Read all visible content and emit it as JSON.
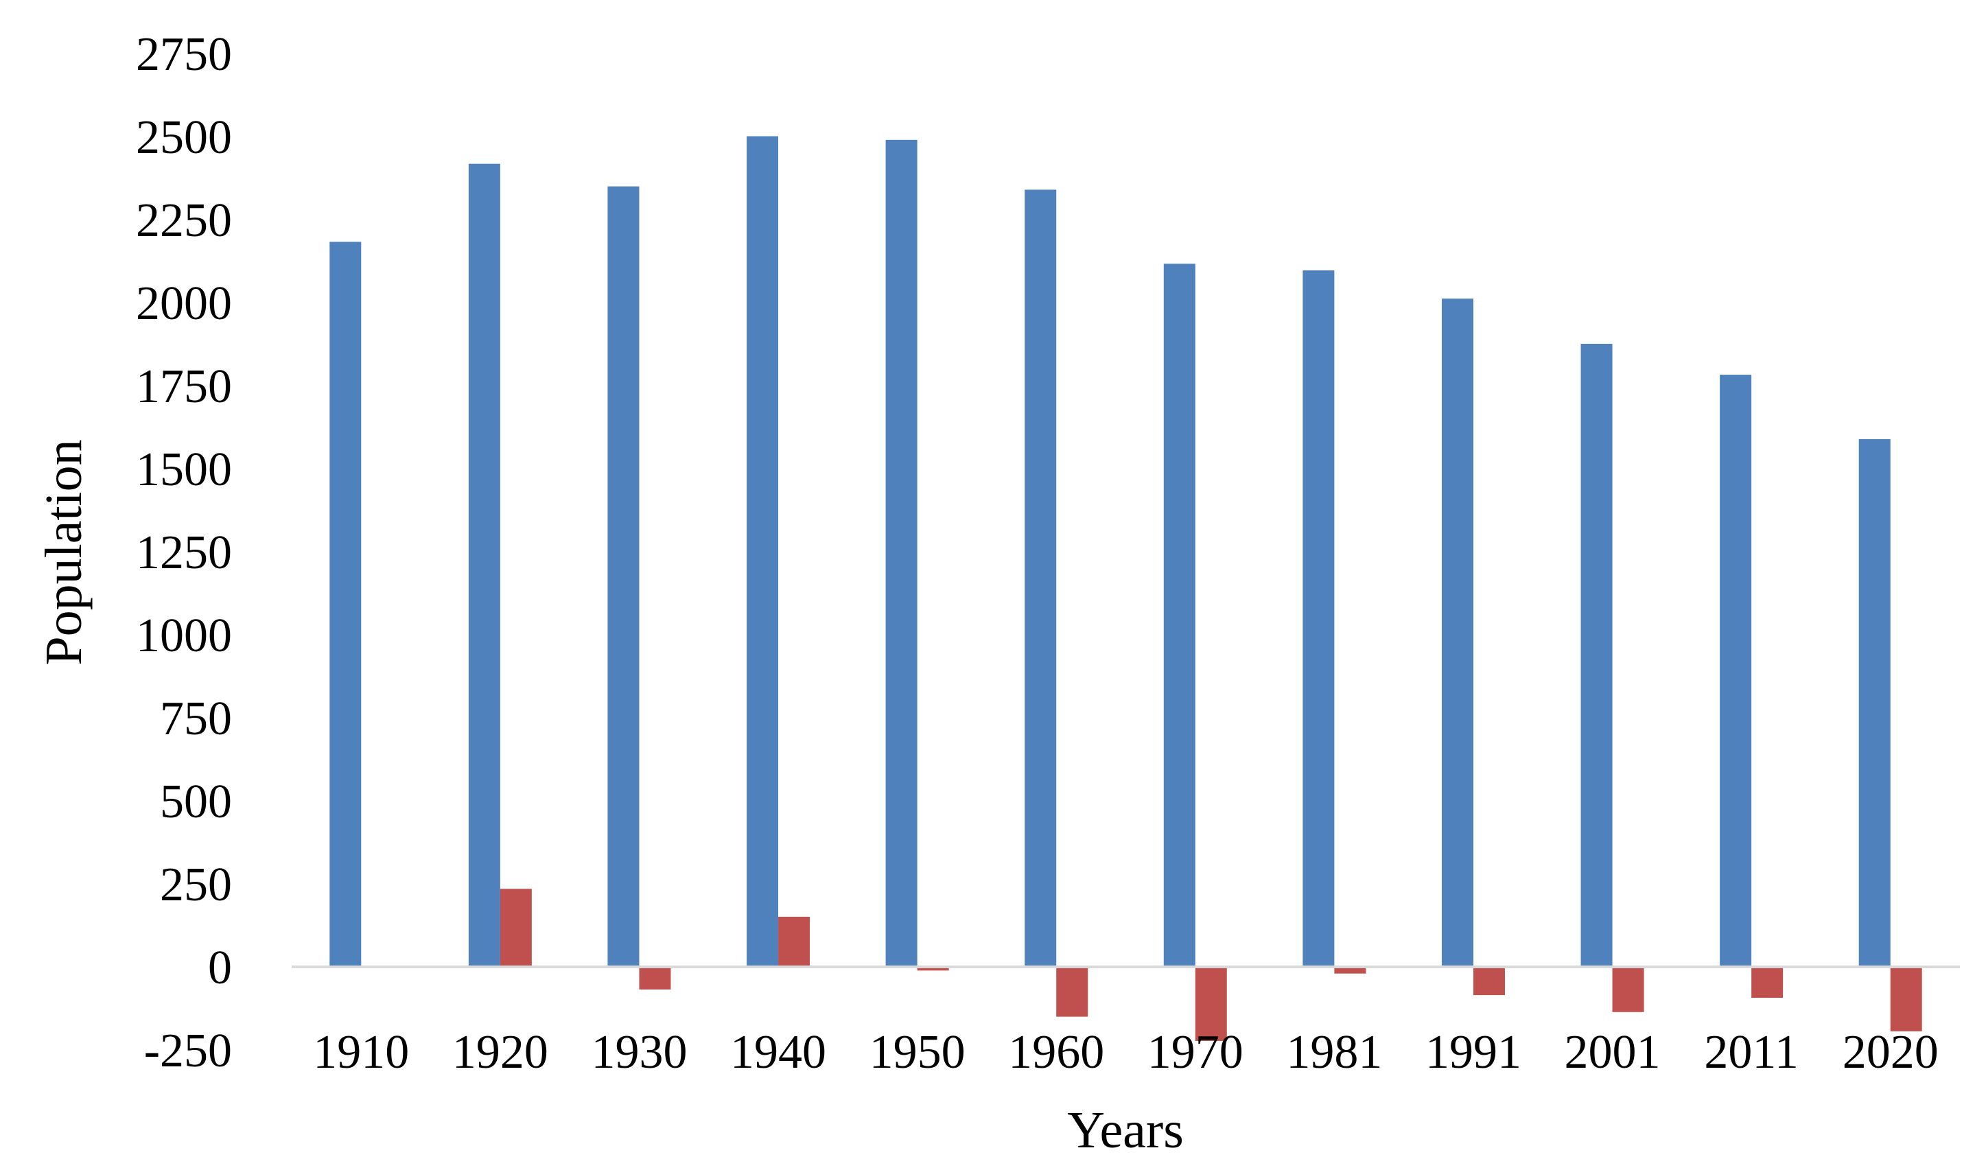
{
  "chart_data": {
    "type": "bar",
    "title": "",
    "xlabel": "Years",
    "ylabel": "Population",
    "categories": [
      "1910",
      "1920",
      "1930",
      "1940",
      "1950",
      "1960",
      "1970",
      "1981",
      "1991",
      "2001",
      "2011",
      "2020"
    ],
    "series": [
      {
        "color": "#4F81BD",
        "values": [
          2183,
          2418,
          2350,
          2501,
          2490,
          2340,
          2117,
          2097,
          2012,
          1876,
          1783,
          1589
        ]
      },
      {
        "color": "#C0504D",
        "values": [
          0,
          235,
          -68,
          151,
          -11,
          -150,
          -223,
          -20,
          -85,
          -136,
          -93,
          -194
        ]
      }
    ],
    "ylim": [
      -250,
      2750
    ],
    "yticks": [
      "2750",
      "2500",
      "2250",
      "2000",
      "1750",
      "1500",
      "1250",
      "1000",
      "750",
      "500",
      "250",
      "0",
      "-250"
    ],
    "grid": false,
    "legend": "none",
    "zero_line_color": "#D9D9D9"
  }
}
